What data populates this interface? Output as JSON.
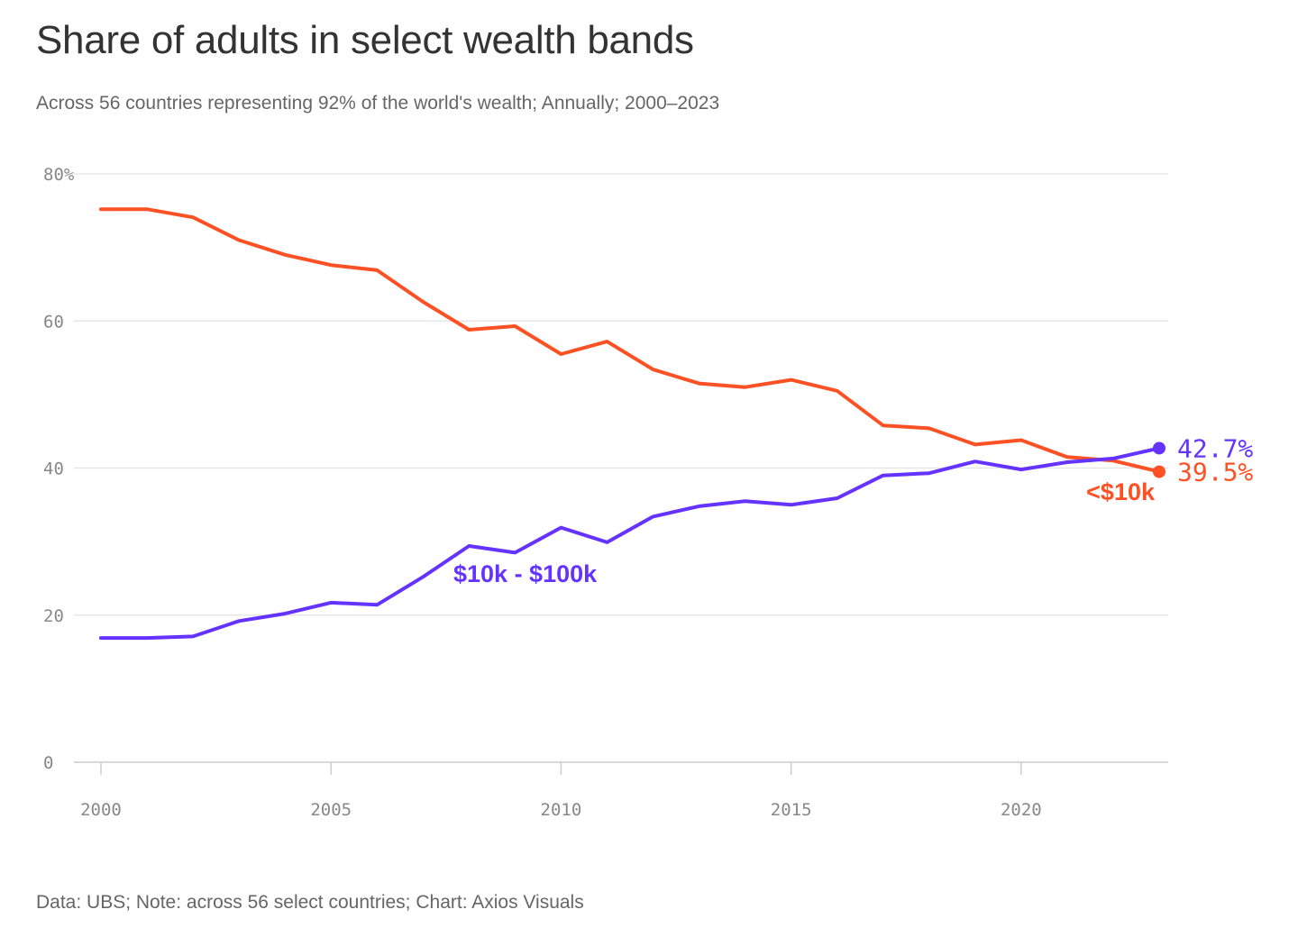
{
  "header": {
    "title": "Share of adults in select wealth bands",
    "subtitle": "Across 56 countries representing 92% of the world's wealth; Annually; 2000–2023"
  },
  "footer": {
    "source": "Data: UBS; Note: across 56 select countries; Chart: Axios Visuals"
  },
  "chart_data": {
    "type": "line",
    "title": "Share of adults in select wealth bands",
    "subtitle": "Across 56 countries representing 92% of the world's wealth; Annually; 2000–2023",
    "xlabel": "",
    "ylabel": "",
    "x": [
      2000,
      2001,
      2002,
      2003,
      2004,
      2005,
      2006,
      2007,
      2008,
      2009,
      2010,
      2011,
      2012,
      2013,
      2014,
      2015,
      2016,
      2017,
      2018,
      2019,
      2020,
      2021,
      2022,
      2023
    ],
    "xlim": [
      2000,
      2023
    ],
    "ylim": [
      0,
      80
    ],
    "grid": true,
    "x_ticks": [
      {
        "value": 2000,
        "label": "2000"
      },
      {
        "value": 2005,
        "label": "2005"
      },
      {
        "value": 2010,
        "label": "2010"
      },
      {
        "value": 2015,
        "label": "2015"
      },
      {
        "value": 2020,
        "label": "2020"
      }
    ],
    "y_ticks": [
      {
        "value": 0,
        "label": "0"
      },
      {
        "value": 20,
        "label": "20"
      },
      {
        "value": 40,
        "label": "40"
      },
      {
        "value": 60,
        "label": "60"
      },
      {
        "value": 80,
        "label": "80%"
      }
    ],
    "series": [
      {
        "id": "under-10k",
        "name": "<$10k",
        "color": "#fc5124",
        "values": [
          75.2,
          75.2,
          74.1,
          71.0,
          69.0,
          67.6,
          66.9,
          62.6,
          58.8,
          59.3,
          55.5,
          57.2,
          53.4,
          51.5,
          51.0,
          52.0,
          50.5,
          45.8,
          45.4,
          43.2,
          43.8,
          41.5,
          41.0,
          39.5
        ],
        "end_label": "39.5%"
      },
      {
        "id": "10k-100k",
        "name": "$10k - $100k",
        "color": "#6533ff",
        "values": [
          16.9,
          16.9,
          17.1,
          19.2,
          20.2,
          21.7,
          21.4,
          25.2,
          29.4,
          28.5,
          31.9,
          29.9,
          33.4,
          34.8,
          35.5,
          35.0,
          35.9,
          39.0,
          39.3,
          40.9,
          39.8,
          40.8,
          41.3,
          42.7
        ],
        "end_label": "42.7%"
      }
    ]
  }
}
